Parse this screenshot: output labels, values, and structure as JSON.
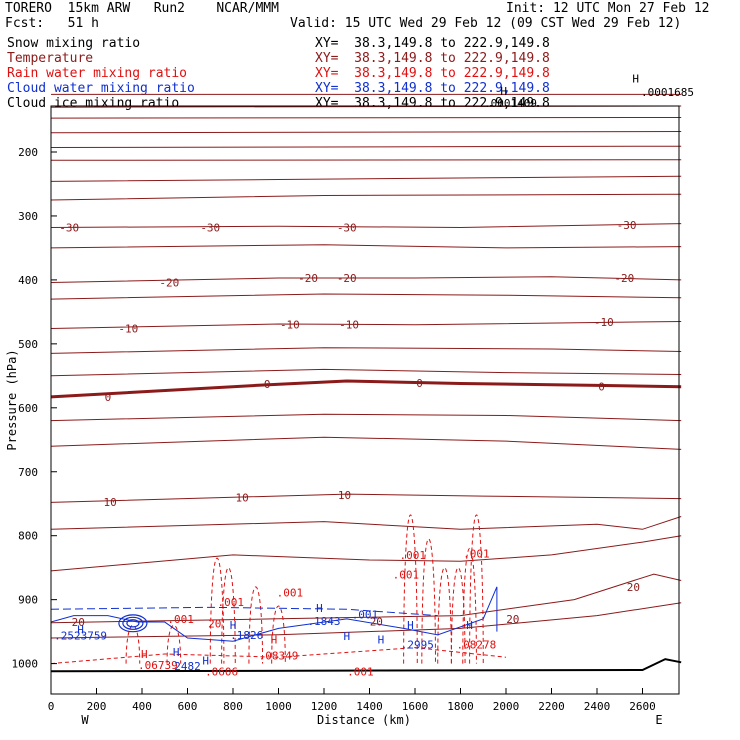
{
  "header": {
    "model": "TORERO  15km ARW   Run2    NCAR/MMM",
    "init": "Init: 12 UTC Mon 27 Feb 12",
    "fcst": "Fcst:   51 h",
    "valid": "Valid: 15 UTC Wed 29 Feb 12 (09 CST Wed 29 Feb 12)"
  },
  "fields": [
    {
      "name": "Snow mixing ratio",
      "xy": "XY=  38.3,149.8 to 222.9,149.8",
      "color": "#000000"
    },
    {
      "name": "Temperature",
      "xy": "XY=  38.3,149.8 to 222.9,149.8",
      "color": "#8b1a1a"
    },
    {
      "name": "Rain water mixing ratio",
      "xy": "XY=  38.3,149.8 to 222.9,149.8",
      "color": "#e01010"
    },
    {
      "name": "Cloud water mixing ratio",
      "xy": "XY=  38.3,149.8 to 222.9,149.8",
      "color": "#1030d0"
    },
    {
      "name": "Cloud ice mixing ratio",
      "xy": "XY=  38.3,149.8 to 222.9,149.8",
      "color": "#000000"
    }
  ],
  "chart_data": {
    "type": "cross-section",
    "ylabel": "Pressure (hPa)",
    "xlabel": "Distance (km)",
    "xlim": [
      0,
      2770
    ],
    "ylim": [
      1050,
      100
    ],
    "x_ticks": [
      0,
      200,
      400,
      600,
      800,
      1000,
      1200,
      1400,
      1600,
      1800,
      2000,
      2200,
      2400,
      2600
    ],
    "y_ticks": [
      200,
      300,
      400,
      500,
      600,
      700,
      800,
      900,
      1000
    ],
    "x_end_labels": {
      "left": "W",
      "right": "E"
    },
    "temperature_labels": [
      {
        "x": 80,
        "p": 318,
        "text": "-30"
      },
      {
        "x": 700,
        "p": 318,
        "text": "-30"
      },
      {
        "x": 1300,
        "p": 318,
        "text": "-30"
      },
      {
        "x": 2530,
        "p": 314,
        "text": "-30"
      },
      {
        "x": 520,
        "p": 404,
        "text": "-20"
      },
      {
        "x": 1130,
        "p": 397,
        "text": "-20"
      },
      {
        "x": 1300,
        "p": 397,
        "text": "-20"
      },
      {
        "x": 2520,
        "p": 397,
        "text": "-20"
      },
      {
        "x": 340,
        "p": 476,
        "text": "-10"
      },
      {
        "x": 1050,
        "p": 470,
        "text": "-10"
      },
      {
        "x": 1310,
        "p": 470,
        "text": "-10"
      },
      {
        "x": 2430,
        "p": 466,
        "text": "-10"
      },
      {
        "x": 250,
        "p": 583,
        "text": "0"
      },
      {
        "x": 950,
        "p": 563,
        "text": "0"
      },
      {
        "x": 1620,
        "p": 561,
        "text": "0"
      },
      {
        "x": 2420,
        "p": 567,
        "text": "0"
      },
      {
        "x": 260,
        "p": 747,
        "text": "10"
      },
      {
        "x": 840,
        "p": 740,
        "text": "10"
      },
      {
        "x": 1290,
        "p": 736,
        "text": "10"
      },
      {
        "x": 2560,
        "p": 880,
        "text": "20"
      },
      {
        "x": 2030,
        "p": 930,
        "text": "20"
      },
      {
        "x": 120,
        "p": 935,
        "text": "20"
      },
      {
        "x": 1430,
        "p": 934,
        "text": "20"
      }
    ],
    "rain_labels": [
      {
        "x": 1590,
        "p": 830,
        "text": ".001"
      },
      {
        "x": 1870,
        "p": 828,
        "text": ".001"
      },
      {
        "x": 1560,
        "p": 861,
        "text": ".001"
      },
      {
        "x": 1050,
        "p": 889,
        "text": ".001"
      },
      {
        "x": 790,
        "p": 904,
        "text": ".001"
      },
      {
        "x": 570,
        "p": 930,
        "text": ".001"
      },
      {
        "x": 720,
        "p": 937,
        "text": "20"
      },
      {
        "x": 1360,
        "p": 1012,
        "text": ".001"
      },
      {
        "x": 750,
        "p": 1012,
        "text": ".0606"
      },
      {
        "x": 470,
        "p": 1002,
        "text": ".06739"
      },
      {
        "x": 1000,
        "p": 987,
        "text": ".08349"
      },
      {
        "x": 1870,
        "p": 970,
        "text": ".08278"
      }
    ],
    "cloud_water_labels": [
      {
        "x": 1200,
        "p": 933,
        "text": ".1843"
      },
      {
        "x": 860,
        "p": 955,
        "text": ".1826"
      },
      {
        "x": 130,
        "p": 956,
        "text": ".2523759"
      },
      {
        "x": 600,
        "p": 1004,
        "text": "2482"
      },
      {
        "x": 1610,
        "p": 970,
        "text": ".2995"
      },
      {
        "x": 1380,
        "p": 923,
        "text": ".001"
      }
    ],
    "snow_annotations": [
      {
        "x": 2710,
        "p": 106,
        "text": ".0001685"
      },
      {
        "x": 2020,
        "p": 123,
        "text": ".0001409"
      }
    ],
    "highs": [
      {
        "x": 2570,
        "p": 85,
        "color": "#000000"
      },
      {
        "x": 1990,
        "p": 105,
        "color": "#000000"
      },
      {
        "x": 1180,
        "p": 913,
        "color": "#1030d0"
      },
      {
        "x": 1580,
        "p": 940,
        "color": "#1030d0"
      },
      {
        "x": 1840,
        "p": 940,
        "color": "#1030d0"
      },
      {
        "x": 130,
        "p": 947,
        "color": "#1030d0"
      },
      {
        "x": 800,
        "p": 940,
        "color": "#1030d0"
      },
      {
        "x": 410,
        "p": 985,
        "color": "#e01010"
      },
      {
        "x": 550,
        "p": 982,
        "color": "#1030d0"
      },
      {
        "x": 680,
        "p": 995,
        "color": "#1030d0"
      },
      {
        "x": 980,
        "p": 962,
        "color": "#e01010"
      },
      {
        "x": 1300,
        "p": 957,
        "color": "#1030d0"
      },
      {
        "x": 1450,
        "p": 962,
        "color": "#1030d0"
      }
    ],
    "surface": "terrain line near 1010 hPa rising to ~985 hPa near 2700 km"
  }
}
